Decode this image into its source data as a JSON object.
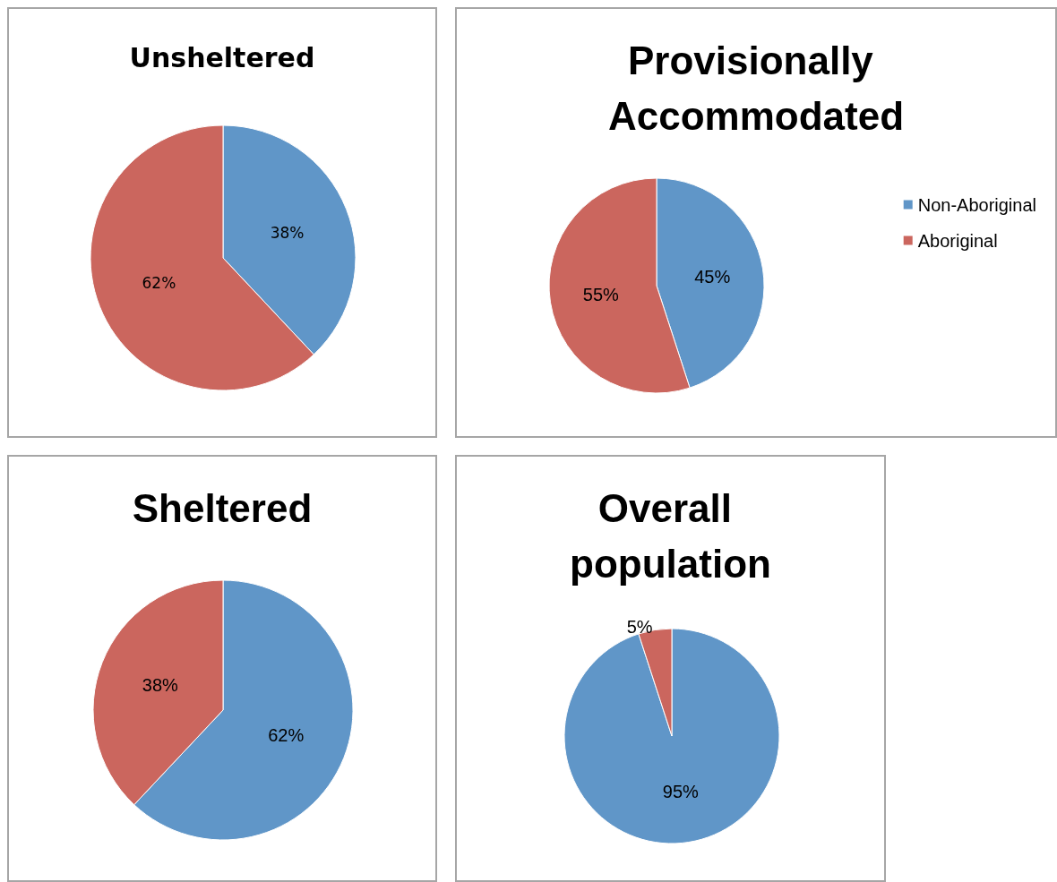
{
  "chart_data": [
    {
      "type": "pie",
      "title": "Unsheltered",
      "categories": [
        null,
        null
      ],
      "values": [
        38,
        62
      ],
      "colors": [
        "#6096c8",
        "#cb665e"
      ],
      "value_labels": [
        "38%",
        "62%"
      ],
      "legend": false
    },
    {
      "type": "pie",
      "title": "Provisionally Accommodated",
      "categories": [
        "Non-Aboriginal",
        "Aboriginal"
      ],
      "values": [
        45,
        55
      ],
      "colors": [
        "#6096c8",
        "#cb665e"
      ],
      "value_labels": [
        "45%",
        "55%"
      ],
      "legend": "right"
    },
    {
      "type": "pie",
      "title": "Sheltered",
      "categories": [
        null,
        null
      ],
      "values": [
        62,
        38
      ],
      "colors": [
        "#6096c8",
        "#cb665e"
      ],
      "value_labels": [
        "62%",
        "38%"
      ],
      "legend": false
    },
    {
      "type": "pie",
      "title": "Overall population",
      "categories": [
        null,
        null
      ],
      "values": [
        95,
        5
      ],
      "colors": [
        "#6096c8",
        "#cb665e"
      ],
      "value_labels": [
        "95%",
        "5%"
      ],
      "legend": false
    }
  ]
}
